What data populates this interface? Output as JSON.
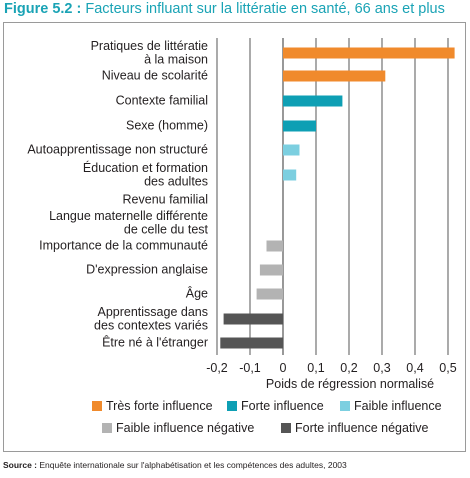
{
  "title": {
    "number": "Figure 5.2 :",
    "text": "Facteurs influant sur la littératie en santé, 66 ans et plus"
  },
  "source": {
    "label": "Source :",
    "text": "Enquête internationale sur l'alphabétisation et les compétences des adultes, 2003"
  },
  "chart_data": {
    "type": "bar",
    "orientation": "horizontal",
    "title": "Facteurs influant sur la littératie en santé, 66 ans et plus",
    "xlabel": "Poids de régression normalisé",
    "xlim": [
      -0.2,
      0.5
    ],
    "xticks": [
      -0.2,
      -0.1,
      0,
      0.1,
      0.2,
      0.3,
      0.4,
      0.5
    ],
    "xtick_labels": [
      "-0,2",
      "-0,1",
      "0",
      "0,1",
      "0,2",
      "0,3",
      "0,4",
      "0,5"
    ],
    "grid": "vertical",
    "legend_position": "bottom",
    "categories": [
      {
        "label": [
          "Pratiques de littératie",
          "à la maison"
        ],
        "value": 0.52,
        "group": "very_strong"
      },
      {
        "label": [
          "Niveau de scolarité"
        ],
        "value": 0.31,
        "group": "very_strong"
      },
      {
        "label": [
          "Contexte familial"
        ],
        "value": 0.18,
        "group": "strong"
      },
      {
        "label": [
          "Sexe (homme)"
        ],
        "value": 0.1,
        "group": "strong"
      },
      {
        "label": [
          "Autoapprentissage non structuré"
        ],
        "value": 0.05,
        "group": "weak"
      },
      {
        "label": [
          "Éducation et formation",
          "des adultes"
        ],
        "value": 0.04,
        "group": "weak"
      },
      {
        "label": [
          "Revenu familial"
        ],
        "value": 0,
        "group": "none"
      },
      {
        "label": [
          "Langue maternelle différente",
          "de celle du test"
        ],
        "value": 0,
        "group": "none"
      },
      {
        "label": [
          "Importance de la communauté"
        ],
        "value": -0.05,
        "group": "weak_negative"
      },
      {
        "label": [
          "D'expression anglaise"
        ],
        "value": -0.07,
        "group": "weak_negative"
      },
      {
        "label": [
          "Âge"
        ],
        "value": -0.08,
        "group": "weak_negative"
      },
      {
        "label": [
          "Apprentissage dans",
          "des contextes variés"
        ],
        "value": -0.18,
        "group": "strong_negative"
      },
      {
        "label": [
          "Être né à l'étranger"
        ],
        "value": -0.19,
        "group": "strong_negative"
      }
    ],
    "legend": [
      {
        "key": "very_strong",
        "label": "Très forte influence",
        "color": "#f08a2c"
      },
      {
        "key": "strong",
        "label": "Forte influence",
        "color": "#0e9fb4"
      },
      {
        "key": "weak",
        "label": "Faible influence",
        "color": "#7ccfe0"
      },
      {
        "key": "weak_negative",
        "label": "Faible influence négative",
        "color": "#b3b3b3"
      },
      {
        "key": "strong_negative",
        "label": "Forte influence négative",
        "color": "#555555"
      }
    ]
  }
}
